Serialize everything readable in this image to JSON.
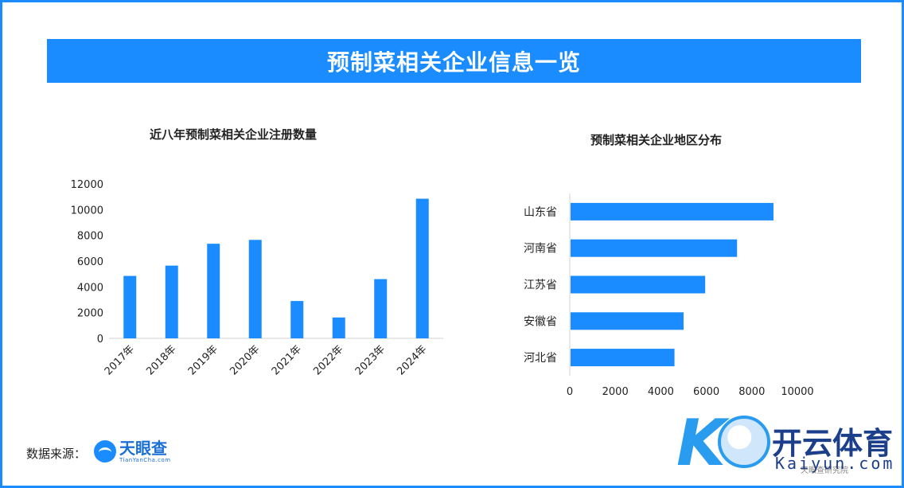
{
  "header": {
    "title": "预制菜相关企业信息一览"
  },
  "footer": {
    "source_label": "数据来源：",
    "logo_name": "天眼查",
    "logo_sub": "TianYanCha.com"
  },
  "watermark": {
    "brand_cn": "开云体育",
    "brand_en": "Kaiyun.com",
    "research_label": "天眼查研究院",
    "accent": "#2a9cf0"
  },
  "colors": {
    "bar": "#1a8cff",
    "banner": "#1a8cff"
  },
  "chart_data": [
    {
      "type": "bar",
      "title": "近八年预制菜相关企业注册数量",
      "categories": [
        "2017年",
        "2018年",
        "2019年",
        "2020年",
        "2021年",
        "2022年",
        "2023年",
        "2024年"
      ],
      "values": [
        4850,
        5650,
        7350,
        7650,
        2900,
        1620,
        4600,
        10850
      ],
      "yticks": [
        0,
        2000,
        4000,
        6000,
        8000,
        10000,
        12000
      ],
      "ylim": [
        0,
        12000
      ],
      "grid": false,
      "legend": "none"
    },
    {
      "type": "bar",
      "orientation": "horizontal",
      "title": "预制菜相关企业地区分布",
      "categories": [
        "山东省",
        "河南省",
        "江苏省",
        "安徽省",
        "河北省"
      ],
      "values": [
        8950,
        7350,
        5950,
        5000,
        4600
      ],
      "xticks": [
        0,
        2000,
        4000,
        6000,
        8000,
        10000
      ],
      "xlim": [
        0,
        10000
      ],
      "grid": false,
      "legend": "none"
    }
  ]
}
